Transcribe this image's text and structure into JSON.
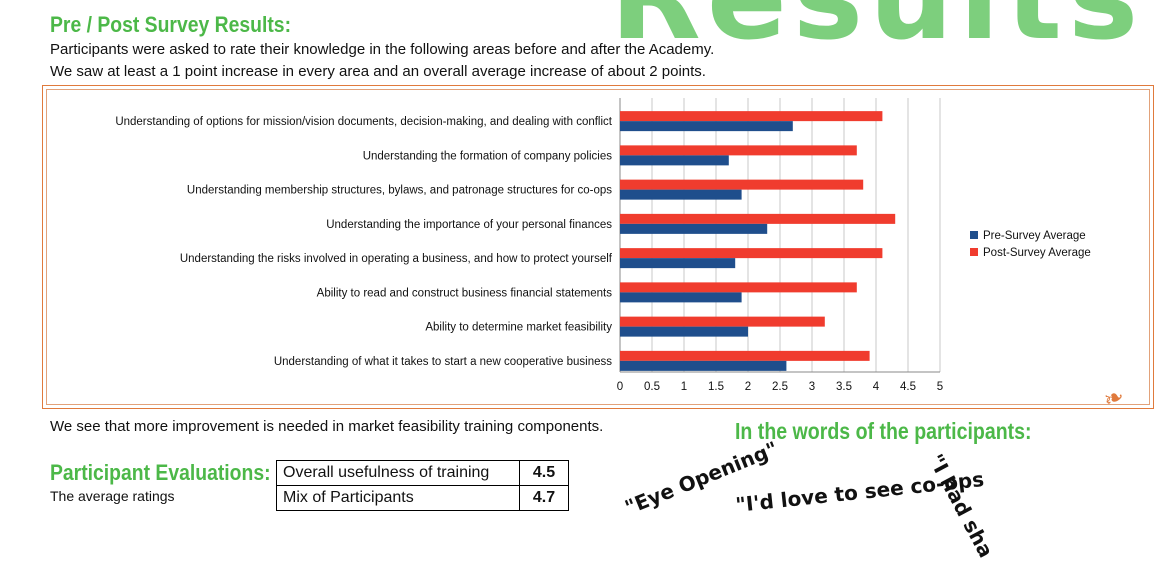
{
  "big_title": "Results",
  "survey_heading": "Pre / Post Survey Results:",
  "intro_line1": "Participants were asked to rate their knowledge in the following areas before and after the Academy.",
  "intro_line2": "We saw at least a 1 point increase in every area and an overall average increase of about 2 points.",
  "note": "We see that more improvement is needed in market feasibility training components.",
  "eval_heading": "Participant Evaluations:",
  "eval_sub": "The average ratings",
  "words_heading": "In the words of the participants:",
  "evaluations": [
    {
      "label": "Overall usefulness of training",
      "value": "4.5"
    },
    {
      "label": "Mix of Participants",
      "value": "4.7"
    }
  ],
  "quotes": [
    "\"Eye Opening\"",
    "\"I'd love to see co-ops",
    "\"I had sha"
  ],
  "colors": {
    "pre": "#1f4e8c",
    "post": "#f03c2e",
    "heading_green": "#4cb848",
    "frame": "#e07a3c"
  },
  "chart_data": {
    "type": "bar",
    "orientation": "horizontal",
    "categories": [
      "Understanding of options for mission/vision documents, decision-making, and dealing with conflict",
      "Understanding the formation of company policies",
      "Understanding membership structures, bylaws, and patronage structures for co-ops",
      "Understanding the importance of your personal finances",
      "Understanding the risks involved in operating a business, and how to protect yourself",
      "Ability to read and construct business financial statements",
      "Ability to determine market feasibility",
      "Understanding of what it takes to start a new cooperative business"
    ],
    "series": [
      {
        "name": "Pre-Survey Average",
        "values": [
          2.7,
          1.7,
          1.9,
          2.3,
          1.8,
          1.9,
          2.0,
          2.6
        ]
      },
      {
        "name": "Post-Survey Average",
        "values": [
          4.1,
          3.7,
          3.8,
          4.3,
          4.1,
          3.7,
          3.2,
          3.9
        ]
      }
    ],
    "xlim": [
      0,
      5
    ],
    "xticks": [
      "0",
      "0.5",
      "1",
      "1.5",
      "2",
      "2.5",
      "3",
      "3.5",
      "4",
      "4.5",
      "5"
    ],
    "grid": true,
    "legend_position": "right"
  }
}
